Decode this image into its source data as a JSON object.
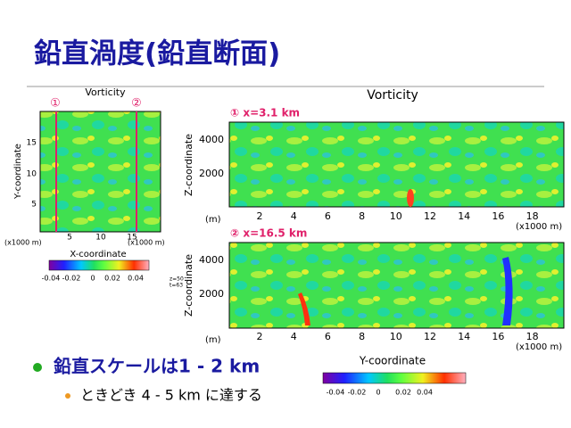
{
  "title": "鉛直渦度(鉛直断面)",
  "left_plot": {
    "title": "Vorticity",
    "markers": [
      "①",
      "②"
    ],
    "y_label": "Y-coordinate",
    "x_label": "X-coordinate",
    "yticks": [
      "15",
      "10",
      "5"
    ],
    "xticks": [
      "5",
      "10",
      "15"
    ],
    "y_unit": "(x1000 m)",
    "x_unit": "(x1000 m)",
    "colorbar_ticks": [
      "-0.04",
      "-0.02",
      "0",
      "0.02",
      "0.04"
    ],
    "notes": [
      "z=50",
      "t=63"
    ]
  },
  "right_plot": {
    "title": "Vorticity",
    "x_label": "Y-coordinate",
    "panels": [
      {
        "label": "① x=3.1 km",
        "y_label": "Z-coordinate",
        "yticks": [
          "4000",
          "2000"
        ],
        "y_unit": "(m)",
        "xticks": [
          "2",
          "4",
          "6",
          "8",
          "10",
          "12",
          "14",
          "16",
          "18"
        ],
        "x_unit": "(x1000 m)"
      },
      {
        "label": "② x=16.5 km",
        "y_label": "Z-coordinate",
        "yticks": [
          "4000",
          "2000"
        ],
        "y_unit": "(m)",
        "xticks": [
          "2",
          "4",
          "6",
          "8",
          "10",
          "12",
          "14",
          "16",
          "18"
        ],
        "x_unit": "(x1000 m)"
      }
    ],
    "colorbar_ticks": [
      "-0.04",
      "-0.02",
      "0",
      "0.02",
      "0.04"
    ]
  },
  "bullets": [
    {
      "text": "鉛直スケールは1 - 2 km",
      "sub": [
        "ときどき 4 - 5 km に達する"
      ]
    }
  ]
}
